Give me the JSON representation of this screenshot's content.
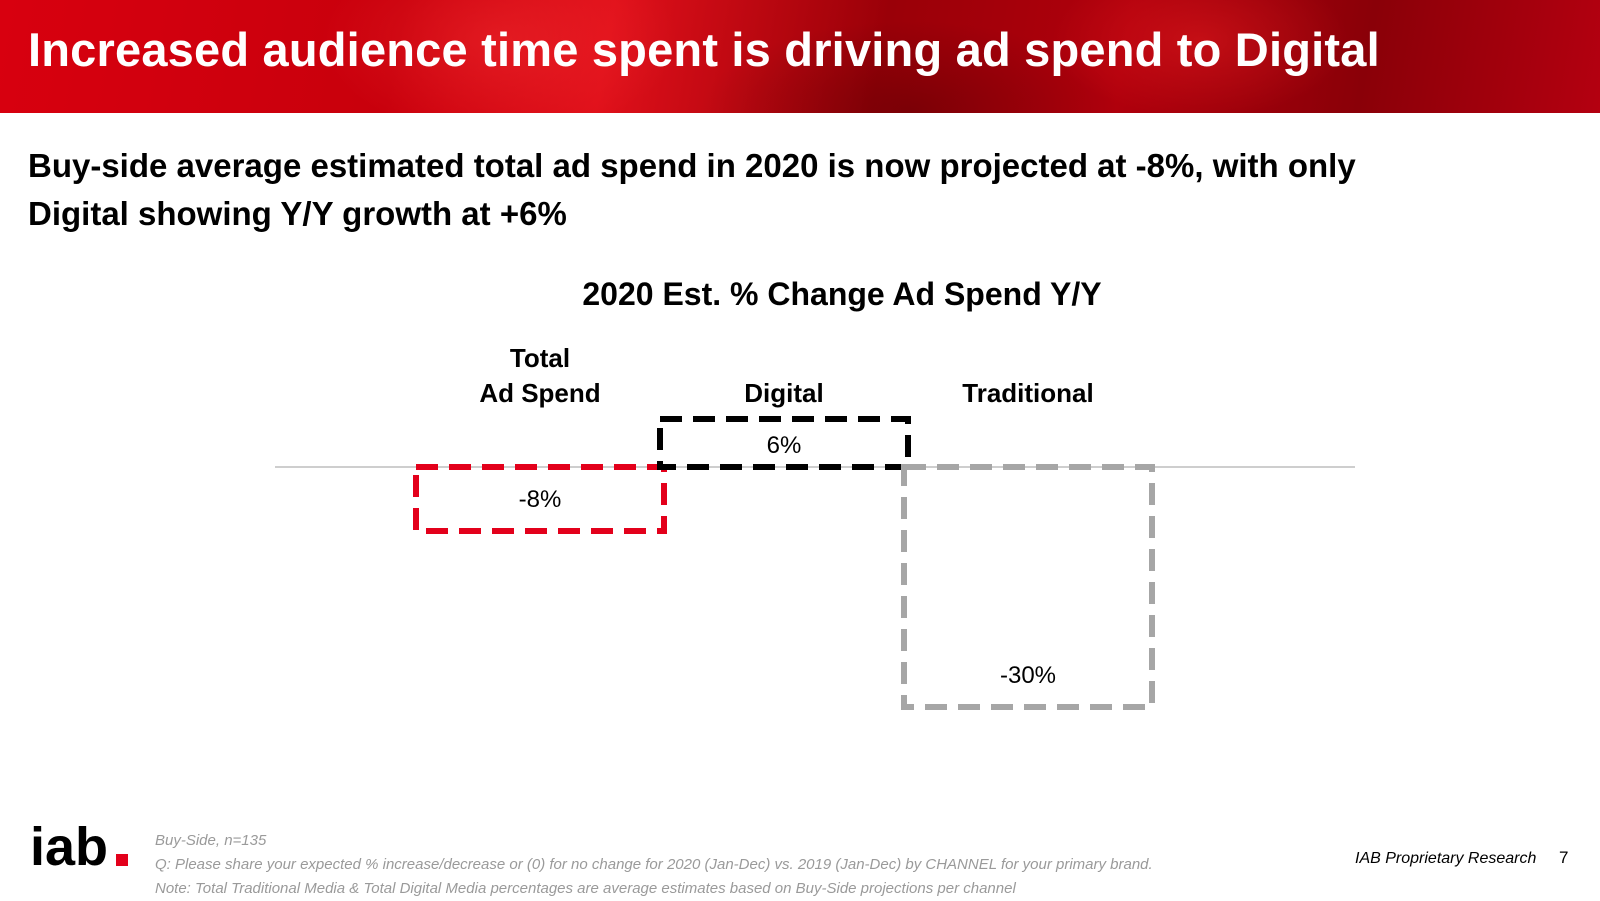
{
  "header": {
    "title": "Increased audience time spent is driving ad spend to Digital"
  },
  "subtitle": {
    "line1": "Buy-side average estimated total ad spend in 2020 is now projected at -8%, with only",
    "line2": "Digital showing Y/Y growth at +6%"
  },
  "chart_data": {
    "type": "bar",
    "title": "2020 Est. % Change Ad Spend Y/Y",
    "categories": [
      "Total\nAd Spend",
      "Digital",
      "Traditional"
    ],
    "values": [
      -8,
      6,
      -30
    ],
    "value_labels": [
      "-8%",
      "6%",
      "-30%"
    ],
    "colors": [
      "#e3001b",
      "#000000",
      "#a6a6a6"
    ],
    "bar_style": "dashed outline",
    "ylim": [
      -30,
      6
    ],
    "xlabel": "",
    "ylabel": "",
    "grid": false,
    "legend": "none"
  },
  "footer": {
    "logo_text": "iab",
    "logo_dot_color": "#e3001b",
    "note_sample": "Buy-Side, n=135",
    "note_question": "Q: Please share your expected % increase/decrease or (0) for no change for 2020 (Jan-Dec) vs. 2019 (Jan-Dec) by CHANNEL for your primary brand.",
    "note_method": "Note: Total Traditional Media & Total Digital Media percentages are average estimates based on Buy-Side projections per channel",
    "proprietary": "IAB Proprietary Research",
    "page_number": "7"
  }
}
